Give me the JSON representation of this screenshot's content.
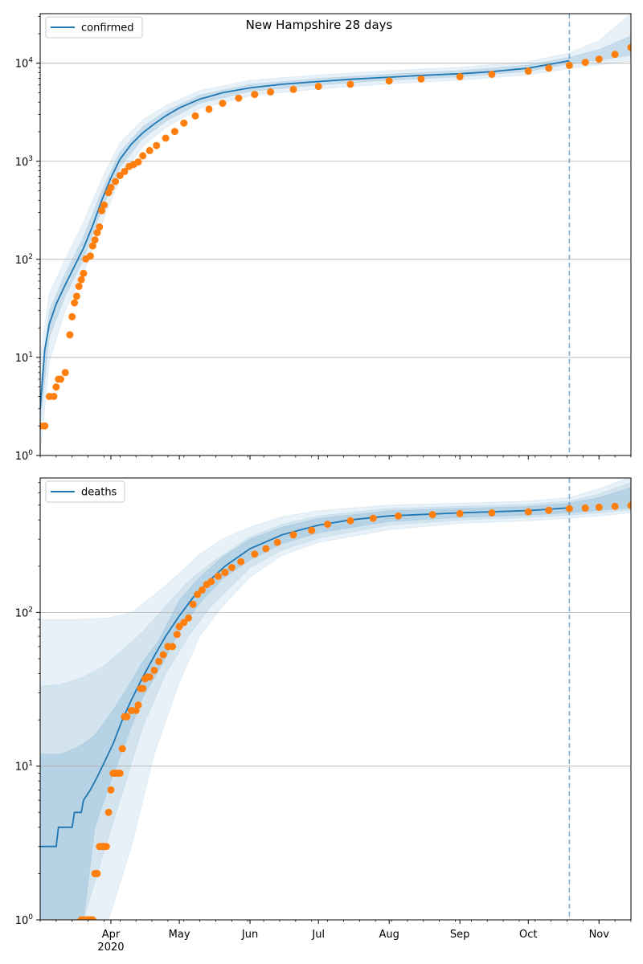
{
  "figure": {
    "title": "New Hampshire 28 days"
  },
  "colors": {
    "model": "#1f77b4",
    "observed": "#ff7f0e",
    "band": "#1f77b4",
    "grid": "#b0b0b0",
    "forecast_line": "#1f77b4"
  },
  "x_axis": {
    "start_date": "2020-03-01",
    "end_date": "2020-11-15",
    "month_ticks": [
      {
        "date": "2020-04-01",
        "label": "Apr"
      },
      {
        "date": "2020-05-01",
        "label": "May"
      },
      {
        "date": "2020-06-01",
        "label": "Jun"
      },
      {
        "date": "2020-07-01",
        "label": "Jul"
      },
      {
        "date": "2020-08-01",
        "label": "Aug"
      },
      {
        "date": "2020-09-01",
        "label": "Sep"
      },
      {
        "date": "2020-10-01",
        "label": "Oct"
      },
      {
        "date": "2020-11-01",
        "label": "Nov"
      }
    ],
    "year_label": "2020",
    "forecast_start": "2020-10-19"
  },
  "chart_data": [
    {
      "type": "line",
      "panel": "confirmed",
      "legend": "confirmed",
      "legend_position": "upper-left",
      "yscale": "log",
      "ylim": [
        1,
        32000
      ],
      "y_ticks": [
        {
          "value": 1,
          "base": "10",
          "exp": "0"
        },
        {
          "value": 10,
          "base": "10",
          "exp": "1"
        },
        {
          "value": 100,
          "base": "10",
          "exp": "2"
        },
        {
          "value": 1000,
          "base": "10",
          "exp": "3"
        },
        {
          "value": 10000,
          "base": "10",
          "exp": "4"
        }
      ],
      "grid": "horizontal",
      "model_median": [
        [
          "2020-03-01",
          3
        ],
        [
          "2020-03-03",
          12
        ],
        [
          "2020-03-05",
          22
        ],
        [
          "2020-03-08",
          35
        ],
        [
          "2020-03-12",
          55
        ],
        [
          "2020-03-16",
          85
        ],
        [
          "2020-03-20",
          130
        ],
        [
          "2020-03-24",
          220
        ],
        [
          "2020-03-28",
          400
        ],
        [
          "2020-04-01",
          680
        ],
        [
          "2020-04-05",
          1050
        ],
        [
          "2020-04-10",
          1500
        ],
        [
          "2020-04-15",
          1950
        ],
        [
          "2020-04-20",
          2400
        ],
        [
          "2020-04-25",
          2900
        ],
        [
          "2020-05-01",
          3500
        ],
        [
          "2020-05-10",
          4300
        ],
        [
          "2020-05-20",
          5000
        ],
        [
          "2020-06-01",
          5600
        ],
        [
          "2020-06-15",
          6100
        ],
        [
          "2020-07-01",
          6500
        ],
        [
          "2020-07-15",
          6850
        ],
        [
          "2020-08-01",
          7200
        ],
        [
          "2020-08-15",
          7500
        ],
        [
          "2020-09-01",
          7800
        ],
        [
          "2020-09-15",
          8200
        ],
        [
          "2020-10-01",
          8900
        ],
        [
          "2020-10-10",
          9700
        ],
        [
          "2020-10-19",
          10600
        ]
      ],
      "band_inner": [
        [
          "2020-03-01",
          2,
          5
        ],
        [
          "2020-03-05",
          16,
          30
        ],
        [
          "2020-03-12",
          42,
          72
        ],
        [
          "2020-03-20",
          100,
          170
        ],
        [
          "2020-03-28",
          320,
          500
        ],
        [
          "2020-04-05",
          870,
          1250
        ],
        [
          "2020-04-15",
          1700,
          2250
        ],
        [
          "2020-04-25",
          2550,
          3250
        ],
        [
          "2020-05-10",
          3900,
          4750
        ],
        [
          "2020-06-01",
          5150,
          6100
        ],
        [
          "2020-07-01",
          6000,
          7000
        ],
        [
          "2020-08-01",
          6700,
          7750
        ],
        [
          "2020-09-01",
          7250,
          8400
        ],
        [
          "2020-10-01",
          8250,
          9600
        ],
        [
          "2020-10-19",
          9800,
          11500
        ],
        [
          "2020-11-01",
          10700,
          13800
        ],
        [
          "2020-11-15",
          12000,
          19000
        ]
      ],
      "band_outer": [
        [
          "2020-03-01",
          1,
          10
        ],
        [
          "2020-03-05",
          9,
          45
        ],
        [
          "2020-03-12",
          30,
          100
        ],
        [
          "2020-03-20",
          72,
          240
        ],
        [
          "2020-03-28",
          230,
          660
        ],
        [
          "2020-04-05",
          680,
          1550
        ],
        [
          "2020-04-15",
          1420,
          2650
        ],
        [
          "2020-04-25",
          2200,
          3700
        ],
        [
          "2020-05-10",
          3450,
          5250
        ],
        [
          "2020-06-01",
          4650,
          6700
        ],
        [
          "2020-07-01",
          5450,
          7600
        ],
        [
          "2020-08-01",
          6150,
          8400
        ],
        [
          "2020-09-01",
          6700,
          9100
        ],
        [
          "2020-10-01",
          7600,
          10400
        ],
        [
          "2020-10-19",
          8800,
          12700
        ],
        [
          "2020-11-01",
          9600,
          17000
        ],
        [
          "2020-11-15",
          10500,
          32000
        ]
      ],
      "observed": [
        [
          "2020-03-01",
          2
        ],
        [
          "2020-03-03",
          2
        ],
        [
          "2020-03-05",
          4
        ],
        [
          "2020-03-07",
          4
        ],
        [
          "2020-03-08",
          5
        ],
        [
          "2020-03-09",
          6
        ],
        [
          "2020-03-10",
          6
        ],
        [
          "2020-03-12",
          7
        ],
        [
          "2020-03-14",
          17
        ],
        [
          "2020-03-15",
          26
        ],
        [
          "2020-03-16",
          36
        ],
        [
          "2020-03-17",
          42
        ],
        [
          "2020-03-18",
          53
        ],
        [
          "2020-03-19",
          62
        ],
        [
          "2020-03-20",
          72
        ],
        [
          "2020-03-21",
          101
        ],
        [
          "2020-03-23",
          108
        ],
        [
          "2020-03-24",
          137
        ],
        [
          "2020-03-25",
          158
        ],
        [
          "2020-03-26",
          187
        ],
        [
          "2020-03-27",
          214
        ],
        [
          "2020-03-28",
          314
        ],
        [
          "2020-03-29",
          358
        ],
        [
          "2020-03-31",
          479
        ],
        [
          "2020-04-01",
          540
        ],
        [
          "2020-04-03",
          621
        ],
        [
          "2020-04-05",
          715
        ],
        [
          "2020-04-07",
          788
        ],
        [
          "2020-04-09",
          885
        ],
        [
          "2020-04-11",
          929
        ],
        [
          "2020-04-13",
          985
        ],
        [
          "2020-04-15",
          1139
        ],
        [
          "2020-04-18",
          1287
        ],
        [
          "2020-04-21",
          1447
        ],
        [
          "2020-04-25",
          1720
        ],
        [
          "2020-04-29",
          2010
        ],
        [
          "2020-05-03",
          2450
        ],
        [
          "2020-05-08",
          2900
        ],
        [
          "2020-05-14",
          3400
        ],
        [
          "2020-05-20",
          3900
        ],
        [
          "2020-05-27",
          4400
        ],
        [
          "2020-06-03",
          4800
        ],
        [
          "2020-06-10",
          5100
        ],
        [
          "2020-06-20",
          5400
        ],
        [
          "2020-07-01",
          5800
        ],
        [
          "2020-07-15",
          6100
        ],
        [
          "2020-08-01",
          6600
        ],
        [
          "2020-08-15",
          6900
        ],
        [
          "2020-09-01",
          7300
        ],
        [
          "2020-09-15",
          7700
        ],
        [
          "2020-10-01",
          8300
        ],
        [
          "2020-10-10",
          8900
        ],
        [
          "2020-10-19",
          9500
        ],
        [
          "2020-10-26",
          10200
        ],
        [
          "2020-11-01",
          11000
        ],
        [
          "2020-11-08",
          12300
        ],
        [
          "2020-11-15",
          14500
        ]
      ]
    },
    {
      "type": "line",
      "panel": "deaths",
      "legend": "deaths",
      "legend_position": "upper-left",
      "yscale": "log",
      "ylim": [
        1,
        750
      ],
      "y_ticks": [
        {
          "value": 1,
          "base": "10",
          "exp": "0"
        },
        {
          "value": 10,
          "base": "10",
          "exp": "1"
        },
        {
          "value": 100,
          "base": "10",
          "exp": "2"
        }
      ],
      "grid": "horizontal",
      "model_median": [
        [
          "2020-03-01",
          3
        ],
        [
          "2020-03-08",
          3
        ],
        [
          "2020-03-09",
          4
        ],
        [
          "2020-03-15",
          4
        ],
        [
          "2020-03-16",
          5
        ],
        [
          "2020-03-19",
          5
        ],
        [
          "2020-03-20",
          6
        ],
        [
          "2020-03-23",
          7
        ],
        [
          "2020-03-26",
          8.5
        ],
        [
          "2020-03-29",
          10.5
        ],
        [
          "2020-04-02",
          14
        ],
        [
          "2020-04-06",
          20
        ],
        [
          "2020-04-10",
          27
        ],
        [
          "2020-04-15",
          38
        ],
        [
          "2020-04-20",
          52
        ],
        [
          "2020-04-25",
          70
        ],
        [
          "2020-05-01",
          95
        ],
        [
          "2020-05-07",
          125
        ],
        [
          "2020-05-14",
          160
        ],
        [
          "2020-05-21",
          200
        ],
        [
          "2020-06-01",
          260
        ],
        [
          "2020-06-15",
          320
        ],
        [
          "2020-07-01",
          370
        ],
        [
          "2020-07-15",
          400
        ],
        [
          "2020-08-01",
          425
        ],
        [
          "2020-09-01",
          445
        ],
        [
          "2020-10-01",
          460
        ],
        [
          "2020-10-19",
          480
        ]
      ],
      "band_inner": [
        [
          "2020-03-01",
          1,
          12
        ],
        [
          "2020-03-10",
          1,
          12
        ],
        [
          "2020-03-16",
          1,
          13
        ],
        [
          "2020-03-20",
          1,
          14
        ],
        [
          "2020-03-25",
          4,
          16
        ],
        [
          "2020-04-01",
          8,
          22
        ],
        [
          "2020-04-08",
          15,
          32
        ],
        [
          "2020-04-15",
          28,
          48
        ],
        [
          "2020-04-22",
          42,
          66
        ],
        [
          "2020-05-01",
          75,
          120
        ],
        [
          "2020-05-10",
          115,
          170
        ],
        [
          "2020-05-20",
          165,
          230
        ],
        [
          "2020-06-01",
          220,
          300
        ],
        [
          "2020-06-15",
          280,
          360
        ],
        [
          "2020-07-01",
          330,
          410
        ],
        [
          "2020-08-01",
          390,
          460
        ],
        [
          "2020-09-01",
          415,
          475
        ],
        [
          "2020-10-01",
          430,
          490
        ],
        [
          "2020-10-19",
          445,
          515
        ],
        [
          "2020-11-01",
          460,
          560
        ],
        [
          "2020-11-15",
          480,
          650
        ]
      ],
      "band_mid": [
        [
          "2020-03-01",
          1,
          33
        ],
        [
          "2020-03-10",
          1,
          34
        ],
        [
          "2020-03-20",
          1,
          38
        ],
        [
          "2020-03-28",
          2.5,
          44
        ],
        [
          "2020-04-05",
          6,
          55
        ],
        [
          "2020-04-15",
          18,
          75
        ],
        [
          "2020-04-25",
          40,
          110
        ],
        [
          "2020-05-05",
          70,
          160
        ],
        [
          "2020-05-15",
          110,
          210
        ],
        [
          "2020-06-01",
          195,
          310
        ],
        [
          "2020-06-15",
          255,
          375
        ],
        [
          "2020-07-01",
          305,
          425
        ],
        [
          "2020-08-01",
          370,
          475
        ],
        [
          "2020-09-01",
          400,
          490
        ],
        [
          "2020-10-01",
          415,
          505
        ],
        [
          "2020-10-19",
          430,
          530
        ],
        [
          "2020-11-01",
          445,
          590
        ],
        [
          "2020-11-15",
          465,
          700
        ]
      ],
      "band_outer": [
        [
          "2020-03-01",
          1,
          90
        ],
        [
          "2020-03-15",
          1,
          90
        ],
        [
          "2020-03-31",
          1,
          92
        ],
        [
          "2020-04-10",
          3,
          100
        ],
        [
          "2020-04-20",
          12,
          130
        ],
        [
          "2020-05-01",
          35,
          180
        ],
        [
          "2020-05-10",
          70,
          240
        ],
        [
          "2020-05-20",
          110,
          300
        ],
        [
          "2020-06-01",
          170,
          360
        ],
        [
          "2020-06-15",
          235,
          420
        ],
        [
          "2020-07-01",
          285,
          460
        ],
        [
          "2020-08-01",
          345,
          500
        ],
        [
          "2020-09-01",
          380,
          515
        ],
        [
          "2020-10-01",
          395,
          530
        ],
        [
          "2020-10-19",
          410,
          560
        ],
        [
          "2020-11-01",
          425,
          640
        ],
        [
          "2020-11-15",
          445,
          760
        ]
      ],
      "observed": [
        [
          "2020-03-19",
          1
        ],
        [
          "2020-03-20",
          1
        ],
        [
          "2020-03-21",
          1
        ],
        [
          "2020-03-22",
          1
        ],
        [
          "2020-03-23",
          1
        ],
        [
          "2020-03-24",
          1
        ],
        [
          "2020-03-25",
          2
        ],
        [
          "2020-03-26",
          2
        ],
        [
          "2020-03-27",
          3
        ],
        [
          "2020-03-28",
          3
        ],
        [
          "2020-03-29",
          3
        ],
        [
          "2020-03-30",
          3
        ],
        [
          "2020-03-31",
          5
        ],
        [
          "2020-04-01",
          7
        ],
        [
          "2020-04-02",
          9
        ],
        [
          "2020-04-03",
          9
        ],
        [
          "2020-04-04",
          9
        ],
        [
          "2020-04-05",
          9
        ],
        [
          "2020-04-06",
          13
        ],
        [
          "2020-04-07",
          21
        ],
        [
          "2020-04-08",
          21
        ],
        [
          "2020-04-10",
          23
        ],
        [
          "2020-04-12",
          23
        ],
        [
          "2020-04-13",
          25
        ],
        [
          "2020-04-14",
          32
        ],
        [
          "2020-04-15",
          32
        ],
        [
          "2020-04-16",
          37
        ],
        [
          "2020-04-17",
          38
        ],
        [
          "2020-04-18",
          38
        ],
        [
          "2020-04-20",
          42
        ],
        [
          "2020-04-22",
          48
        ],
        [
          "2020-04-24",
          53
        ],
        [
          "2020-04-26",
          60
        ],
        [
          "2020-04-28",
          60
        ],
        [
          "2020-04-30",
          72
        ],
        [
          "2020-05-01",
          81
        ],
        [
          "2020-05-03",
          86
        ],
        [
          "2020-05-05",
          92
        ],
        [
          "2020-05-07",
          113
        ],
        [
          "2020-05-09",
          131
        ],
        [
          "2020-05-11",
          140
        ],
        [
          "2020-05-13",
          152
        ],
        [
          "2020-05-15",
          159
        ],
        [
          "2020-05-18",
          172
        ],
        [
          "2020-05-21",
          182
        ],
        [
          "2020-05-24",
          196
        ],
        [
          "2020-05-28",
          214
        ],
        [
          "2020-06-03",
          240
        ],
        [
          "2020-06-08",
          260
        ],
        [
          "2020-06-13",
          286
        ],
        [
          "2020-06-20",
          320
        ],
        [
          "2020-06-28",
          342
        ],
        [
          "2020-07-05",
          375
        ],
        [
          "2020-07-15",
          395
        ],
        [
          "2020-07-25",
          410
        ],
        [
          "2020-08-05",
          425
        ],
        [
          "2020-08-20",
          433
        ],
        [
          "2020-09-01",
          440
        ],
        [
          "2020-09-15",
          445
        ],
        [
          "2020-10-01",
          452
        ],
        [
          "2020-10-10",
          462
        ],
        [
          "2020-10-19",
          474
        ],
        [
          "2020-10-26",
          478
        ],
        [
          "2020-11-01",
          484
        ],
        [
          "2020-11-08",
          490
        ],
        [
          "2020-11-15",
          497
        ]
      ]
    }
  ]
}
